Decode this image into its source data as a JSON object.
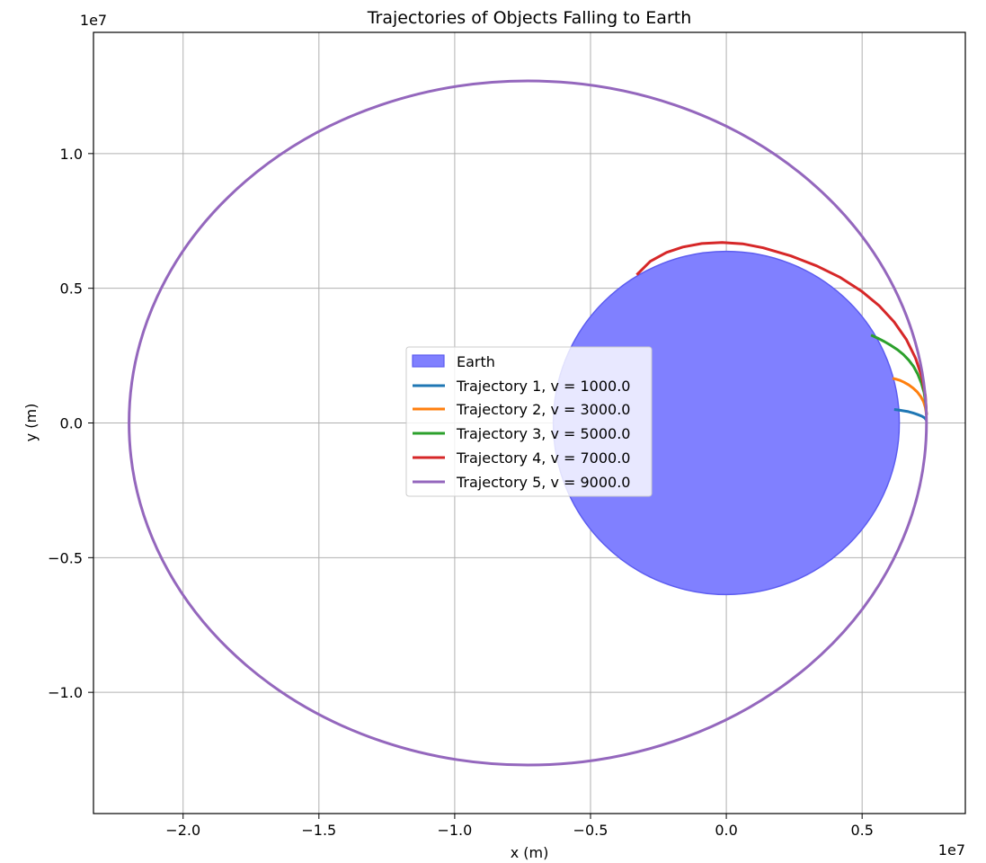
{
  "chart_data": {
    "type": "line",
    "title": "Trajectories of Objects Falling to Earth",
    "xlabel": "x (m)",
    "ylabel": "y (m)",
    "x_offset_label": "1e7",
    "y_offset_label": "1e7",
    "xlim": [
      -2.33,
      0.88
    ],
    "ylim": [
      -1.45,
      1.45
    ],
    "x_ticks": [
      -2.0,
      -1.5,
      -1.0,
      -0.5,
      0.0,
      0.5
    ],
    "x_tick_labels": [
      "−2.0",
      "−1.5",
      "−1.0",
      "−0.5",
      "0.0",
      "0.5"
    ],
    "y_ticks": [
      -1.0,
      -0.5,
      0.0,
      0.5,
      1.0
    ],
    "y_tick_labels": [
      "−1.0",
      "−0.5",
      "0.0",
      "0.5",
      "1.0"
    ],
    "grid": true,
    "legend_position": "center",
    "earth": {
      "name": "Earth",
      "center": [
        0,
        0
      ],
      "radius": 0.637,
      "fill": "#8080ff",
      "edge": "#5c5cf0"
    },
    "series": [
      {
        "name": "Trajectory 1, v = 1000.0",
        "color": "#1f77b4",
        "x": [
          0.737,
          0.73,
          0.72,
          0.705,
          0.688,
          0.67,
          0.652,
          0.635,
          0.618
        ],
        "y": [
          0.01,
          0.019,
          0.025,
          0.031,
          0.037,
          0.042,
          0.045,
          0.048,
          0.05
        ]
      },
      {
        "name": "Trajectory 2, v = 3000.0",
        "color": "#ff7f0e",
        "x": [
          0.737,
          0.733,
          0.726,
          0.716,
          0.703,
          0.688,
          0.672,
          0.655,
          0.64,
          0.624,
          0.612
        ],
        "y": [
          0.03,
          0.057,
          0.079,
          0.098,
          0.115,
          0.129,
          0.141,
          0.151,
          0.158,
          0.163,
          0.166
        ]
      },
      {
        "name": "Trajectory 3, v = 5000.0",
        "color": "#2ca02c",
        "x": [
          0.737,
          0.734,
          0.728,
          0.718,
          0.705,
          0.69,
          0.672,
          0.652,
          0.63,
          0.606,
          0.582,
          0.557,
          0.533
        ],
        "y": [
          0.03,
          0.073,
          0.113,
          0.149,
          0.181,
          0.209,
          0.233,
          0.254,
          0.272,
          0.288,
          0.302,
          0.315,
          0.326
        ]
      },
      {
        "name": "Trajectory 4, v = 7000.0",
        "color": "#d62728",
        "x": [
          0.737,
          0.733,
          0.72,
          0.697,
          0.663,
          0.618,
          0.563,
          0.497,
          0.42,
          0.333,
          0.238,
          0.136,
          0.06,
          -0.015,
          -0.09,
          -0.16,
          -0.22,
          -0.28,
          -0.33
        ],
        "y": [
          0.03,
          0.1,
          0.17,
          0.24,
          0.31,
          0.375,
          0.435,
          0.49,
          0.54,
          0.583,
          0.62,
          0.65,
          0.665,
          0.67,
          0.666,
          0.653,
          0.633,
          0.6,
          0.55
        ]
      },
      {
        "name": "Trajectory 5, v = 9000.0",
        "color": "#9467bd",
        "orbit": {
          "center": [
            -0.731,
            0
          ],
          "semi_major": 1.468,
          "semi_minor": 1.27
        }
      }
    ]
  }
}
